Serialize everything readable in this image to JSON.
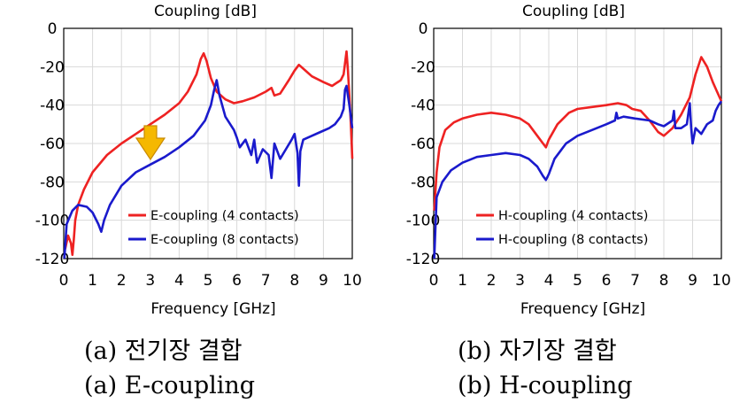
{
  "captions": {
    "a_korean": "(a) 전기장 결합",
    "a_english": "(a) E-coupling",
    "b_korean": "(b) 자기장 결합",
    "b_english": "(b) H-coupling"
  },
  "chart_data": [
    {
      "type": "line",
      "title": "Coupling [dB]",
      "xlabel": "Frequency [GHz]",
      "ylabel": "",
      "xlim": [
        0,
        10
      ],
      "ylim": [
        -120,
        0
      ],
      "xticks": [
        0,
        1,
        2,
        3,
        4,
        5,
        6,
        7,
        8,
        9,
        10
      ],
      "yticks": [
        0,
        -20,
        -40,
        -60,
        -80,
        -100,
        -120
      ],
      "grid": "vertical and horizontal",
      "legend": "bottom-right",
      "annotation": "orange down-arrow near 2.8 GHz, -60 dB",
      "series": [
        {
          "name": "E-coupling (4 contacts)",
          "color": "#ee2222",
          "x": [
            0.05,
            0.15,
            0.25,
            0.3,
            0.35,
            0.4,
            0.5,
            0.7,
            1.0,
            1.5,
            2.0,
            2.5,
            3.0,
            3.5,
            4.0,
            4.3,
            4.6,
            4.75,
            4.85,
            4.95,
            5.1,
            5.3,
            5.6,
            5.9,
            6.2,
            6.6,
            7.0,
            7.2,
            7.3,
            7.5,
            7.8,
            8.0,
            8.15,
            8.3,
            8.6,
            9.0,
            9.3,
            9.6,
            9.7,
            9.8,
            9.85,
            9.9,
            9.95,
            10.0
          ],
          "values": [
            -115,
            -108,
            -112,
            -118,
            -110,
            -100,
            -92,
            -84,
            -75,
            -66,
            -60,
            -55,
            -50,
            -45,
            -39,
            -33,
            -24,
            -16,
            -13,
            -17,
            -26,
            -33,
            -37,
            -39,
            -38,
            -36,
            -33,
            -31,
            -35,
            -34,
            -27,
            -22,
            -19,
            -21,
            -25,
            -28,
            -30,
            -27,
            -24,
            -12,
            -22,
            -35,
            -50,
            -68
          ]
        },
        {
          "name": "E-coupling (8 contacts)",
          "color": "#1a1acc",
          "x": [
            0.02,
            0.1,
            0.3,
            0.5,
            0.8,
            1.0,
            1.2,
            1.3,
            1.4,
            1.6,
            2.0,
            2.5,
            3.0,
            3.5,
            4.0,
            4.5,
            4.9,
            5.1,
            5.2,
            5.3,
            5.4,
            5.6,
            5.9,
            6.0,
            6.1,
            6.3,
            6.5,
            6.6,
            6.7,
            6.9,
            7.1,
            7.2,
            7.3,
            7.5,
            7.7,
            7.9,
            8.0,
            8.1,
            8.15,
            8.2,
            8.3,
            8.6,
            8.9,
            9.2,
            9.4,
            9.6,
            9.7,
            9.75,
            9.8,
            9.9,
            10.0
          ],
          "values": [
            -120,
            -102,
            -95,
            -92,
            -93,
            -96,
            -102,
            -106,
            -100,
            -92,
            -82,
            -75,
            -71,
            -67,
            -62,
            -56,
            -48,
            -40,
            -33,
            -27,
            -35,
            -46,
            -53,
            -57,
            -62,
            -58,
            -66,
            -58,
            -70,
            -63,
            -66,
            -78,
            -60,
            -68,
            -63,
            -58,
            -55,
            -65,
            -82,
            -64,
            -58,
            -56,
            -54,
            -52,
            -50,
            -46,
            -42,
            -32,
            -30,
            -40,
            -52
          ]
        }
      ]
    },
    {
      "type": "line",
      "title": "Coupling [dB]",
      "xlabel": "Frequency [GHz]",
      "ylabel": "",
      "xlim": [
        0,
        10
      ],
      "ylim": [
        -120,
        0
      ],
      "xticks": [
        0,
        1,
        2,
        3,
        4,
        5,
        6,
        7,
        8,
        9,
        10
      ],
      "yticks": [
        0,
        -20,
        -40,
        -60,
        -80,
        -100,
        -120
      ],
      "grid": "vertical and horizontal",
      "legend": "bottom-right",
      "series": [
        {
          "name": "H-coupling (4 contacts)",
          "color": "#ee2222",
          "x": [
            0.02,
            0.1,
            0.2,
            0.4,
            0.7,
            1.0,
            1.5,
            2.0,
            2.5,
            3.0,
            3.3,
            3.6,
            3.8,
            3.9,
            4.0,
            4.3,
            4.7,
            5.0,
            5.5,
            6.0,
            6.4,
            6.7,
            6.9,
            7.2,
            7.5,
            7.8,
            8.0,
            8.3,
            8.6,
            8.9,
            9.1,
            9.3,
            9.5,
            9.7,
            9.85,
            10.0
          ],
          "values": [
            -95,
            -75,
            -62,
            -53,
            -49,
            -47,
            -45,
            -44,
            -45,
            -47,
            -50,
            -56,
            -60,
            -62,
            -58,
            -50,
            -44,
            -42,
            -41,
            -40,
            -39,
            -40,
            -42,
            -43,
            -48,
            -54,
            -56,
            -52,
            -45,
            -36,
            -24,
            -15,
            -20,
            -28,
            -33,
            -38
          ]
        },
        {
          "name": "H-coupling (8 contacts)",
          "color": "#1a1acc",
          "x": [
            0.02,
            0.1,
            0.3,
            0.6,
            1.0,
            1.5,
            2.0,
            2.5,
            3.0,
            3.3,
            3.6,
            3.8,
            3.9,
            4.0,
            4.2,
            4.6,
            5.0,
            5.5,
            6.0,
            6.3,
            6.35,
            6.4,
            6.6,
            7.0,
            7.5,
            7.8,
            8.0,
            8.3,
            8.35,
            8.4,
            8.6,
            8.8,
            8.9,
            8.95,
            9.0,
            9.1,
            9.3,
            9.5,
            9.7,
            9.8,
            9.9,
            10.0
          ],
          "values": [
            -120,
            -88,
            -80,
            -74,
            -70,
            -67,
            -66,
            -65,
            -66,
            -68,
            -72,
            -77,
            -79,
            -76,
            -68,
            -60,
            -56,
            -53,
            -50,
            -48,
            -44,
            -47,
            -46,
            -47,
            -48,
            -50,
            -51,
            -48,
            -43,
            -52,
            -52,
            -50,
            -39,
            -52,
            -60,
            -52,
            -55,
            -50,
            -48,
            -43,
            -40,
            -38
          ]
        }
      ]
    }
  ]
}
